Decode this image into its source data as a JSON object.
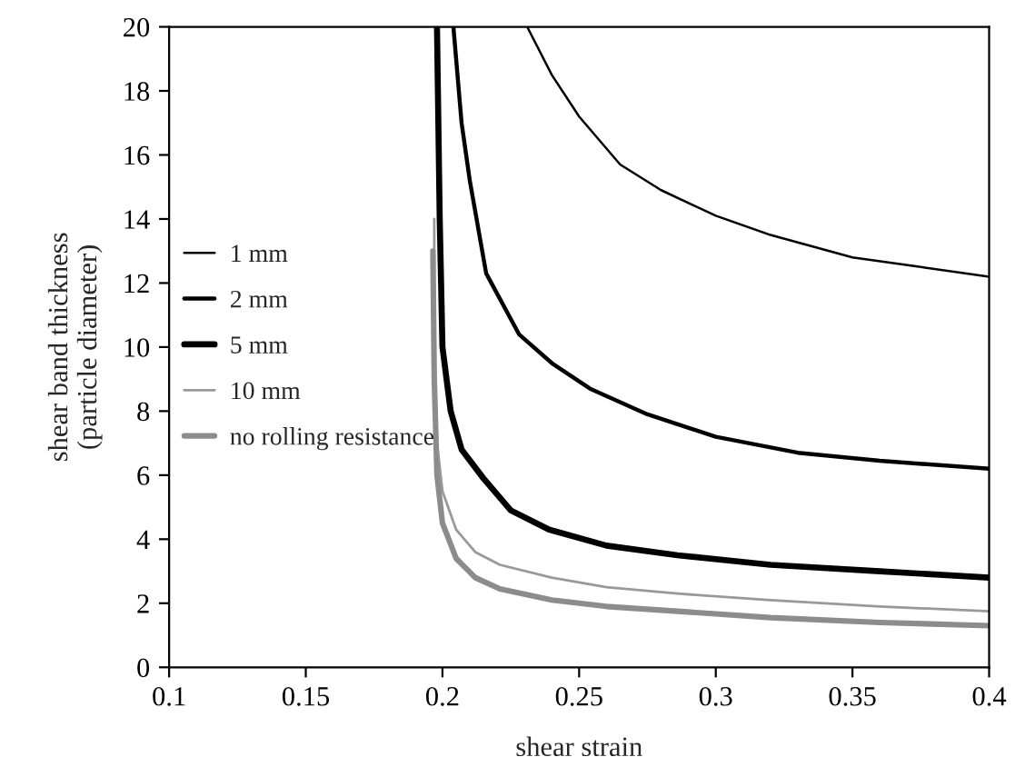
{
  "chart_data": {
    "type": "line",
    "xlabel": "shear strain",
    "ylabel": "shear band thickness\n(particle diameter)",
    "xlim": [
      0.1,
      0.4
    ],
    "xticks": [
      0.1,
      0.15,
      0.2,
      0.25,
      0.3,
      0.35,
      0.4
    ],
    "ylim": [
      0,
      20
    ],
    "yticks": [
      0,
      2,
      4,
      6,
      8,
      10,
      12,
      14,
      16,
      18,
      20
    ],
    "grid": false,
    "legend": "left",
    "marker": "none",
    "line_style": "solid",
    "series": [
      {
        "name": "1 mm",
        "color": "#000000",
        "x": [
          0.231,
          0.24,
          0.25,
          0.265,
          0.28,
          0.3,
          0.32,
          0.35,
          0.375,
          0.4
        ],
        "values": [
          20,
          18.5,
          17.2,
          15.7,
          14.9,
          14.1,
          13.5,
          12.8,
          12.5,
          12.2
        ]
      },
      {
        "name": "2 mm",
        "color": "#000000",
        "x": [
          0.204,
          0.207,
          0.21,
          0.216,
          0.228,
          0.24,
          0.254,
          0.275,
          0.3,
          0.33,
          0.36,
          0.4
        ],
        "values": [
          20,
          17,
          15.2,
          12.3,
          10.4,
          9.5,
          8.7,
          7.9,
          7.2,
          6.7,
          6.45,
          6.2
        ]
      },
      {
        "name": "5 mm",
        "color": "#000000",
        "x": [
          0.198,
          0.199,
          0.2,
          0.203,
          0.207,
          0.215,
          0.225,
          0.239,
          0.26,
          0.286,
          0.32,
          0.36,
          0.4
        ],
        "values": [
          20,
          14,
          10,
          8,
          6.8,
          5.9,
          4.9,
          4.3,
          3.8,
          3.5,
          3.2,
          3.0,
          2.8
        ]
      },
      {
        "name": "10 mm",
        "color": "#999999",
        "x": [
          0.197,
          0.197,
          0.198,
          0.2,
          0.205,
          0.212,
          0.221,
          0.24,
          0.26,
          0.286,
          0.32,
          0.36,
          0.4
        ],
        "values": [
          14,
          10,
          7,
          5.5,
          4.3,
          3.6,
          3.2,
          2.8,
          2.5,
          2.3,
          2.1,
          1.9,
          1.75
        ]
      },
      {
        "name": "no rolling resistance",
        "color": "#8c8c8c",
        "x": [
          0.1965,
          0.197,
          0.198,
          0.2,
          0.205,
          0.212,
          0.221,
          0.24,
          0.26,
          0.286,
          0.32,
          0.36,
          0.4
        ],
        "values": [
          13,
          9,
          6,
          4.5,
          3.4,
          2.8,
          2.45,
          2.1,
          1.9,
          1.75,
          1.55,
          1.4,
          1.3
        ]
      }
    ]
  }
}
